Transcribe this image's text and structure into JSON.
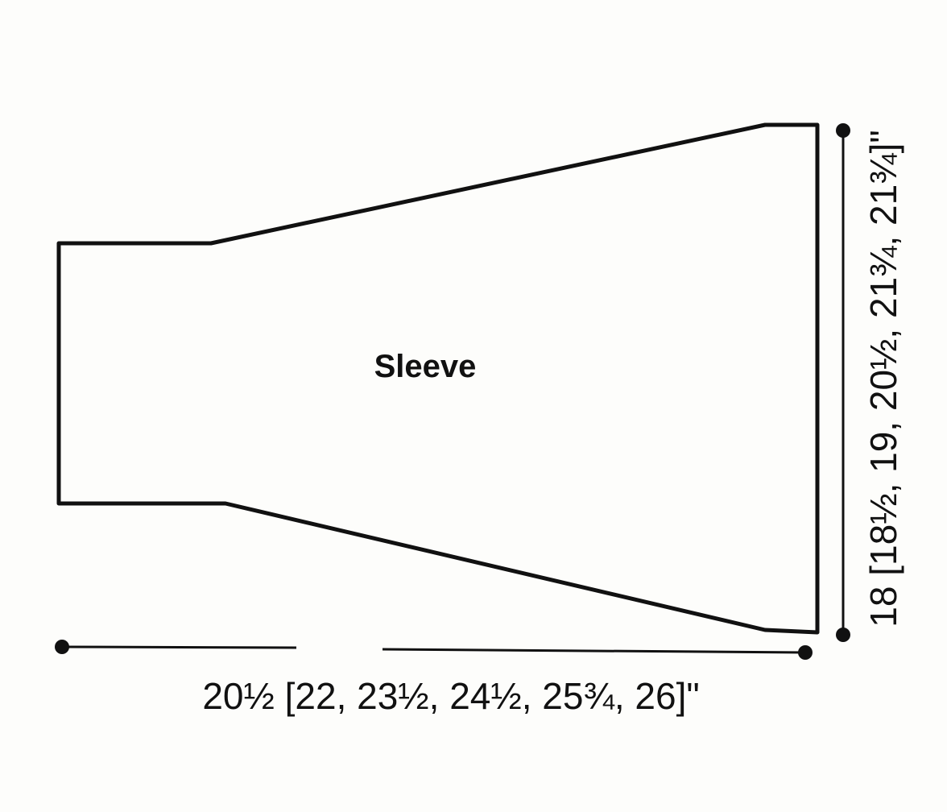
{
  "piece": {
    "label": "Sleeve"
  },
  "dimensions": {
    "width": "20½ [22, 23½, 24½, 25¾, 26]\"",
    "length": "18 [18½, 19, 20½, 21¾, 21¾]\""
  }
}
